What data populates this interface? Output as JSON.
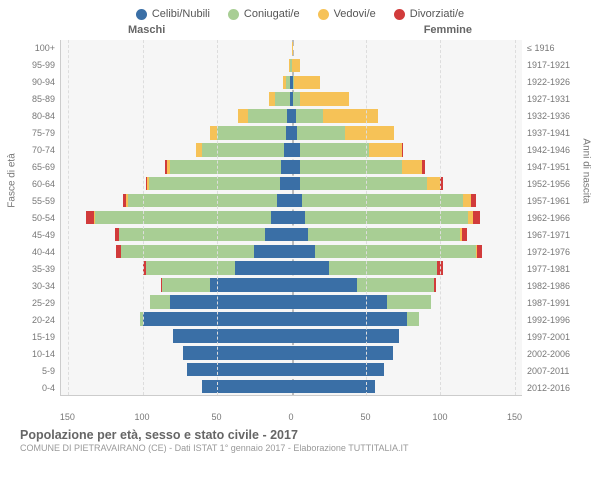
{
  "legend": [
    {
      "label": "Celibi/Nubili",
      "color": "#3a6fa6"
    },
    {
      "label": "Coniugati/e",
      "color": "#a8ce94"
    },
    {
      "label": "Vedovi/e",
      "color": "#f6c257"
    },
    {
      "label": "Divorziati/e",
      "color": "#d13b3b"
    }
  ],
  "side_labels": {
    "left": "Maschi",
    "right": "Femmine"
  },
  "axis_titles": {
    "left": "Fasce di età",
    "right": "Anni di nascita"
  },
  "x_ticks": [
    150,
    100,
    50,
    0,
    50,
    100,
    150
  ],
  "x_max": 155,
  "age_groups": [
    "100+",
    "95-99",
    "90-94",
    "85-89",
    "80-84",
    "75-79",
    "70-74",
    "65-69",
    "60-64",
    "55-59",
    "50-54",
    "45-49",
    "40-44",
    "35-39",
    "30-34",
    "25-29",
    "20-24",
    "15-19",
    "10-14",
    "5-9",
    "0-4"
  ],
  "birth_years": [
    "≤ 1916",
    "1917-1921",
    "1922-1926",
    "1927-1931",
    "1932-1936",
    "1937-1941",
    "1942-1946",
    "1947-1951",
    "1952-1956",
    "1957-1961",
    "1962-1966",
    "1967-1971",
    "1972-1976",
    "1977-1981",
    "1982-1986",
    "1987-1991",
    "1992-1996",
    "1997-2001",
    "2002-2006",
    "2007-2011",
    "2012-2016"
  ],
  "rows": [
    {
      "m": {
        "c": 0,
        "m": 0,
        "w": 0,
        "d": 0
      },
      "f": {
        "c": 0,
        "m": 0,
        "w": 1,
        "d": 0
      }
    },
    {
      "m": {
        "c": 0,
        "m": 1,
        "w": 1,
        "d": 0
      },
      "f": {
        "c": 0,
        "m": 0,
        "w": 6,
        "d": 0
      }
    },
    {
      "m": {
        "c": 1,
        "m": 3,
        "w": 2,
        "d": 0
      },
      "f": {
        "c": 1,
        "m": 1,
        "w": 17,
        "d": 0
      }
    },
    {
      "m": {
        "c": 1,
        "m": 10,
        "w": 4,
        "d": 0
      },
      "f": {
        "c": 1,
        "m": 5,
        "w": 33,
        "d": 0
      }
    },
    {
      "m": {
        "c": 3,
        "m": 26,
        "w": 7,
        "d": 0
      },
      "f": {
        "c": 3,
        "m": 18,
        "w": 37,
        "d": 0
      }
    },
    {
      "m": {
        "c": 4,
        "m": 46,
        "w": 5,
        "d": 0
      },
      "f": {
        "c": 4,
        "m": 32,
        "w": 33,
        "d": 0
      }
    },
    {
      "m": {
        "c": 5,
        "m": 55,
        "w": 4,
        "d": 0
      },
      "f": {
        "c": 6,
        "m": 46,
        "w": 22,
        "d": 1
      }
    },
    {
      "m": {
        "c": 7,
        "m": 75,
        "w": 2,
        "d": 1
      },
      "f": {
        "c": 6,
        "m": 68,
        "w": 14,
        "d": 2
      }
    },
    {
      "m": {
        "c": 8,
        "m": 88,
        "w": 1,
        "d": 1
      },
      "f": {
        "c": 6,
        "m": 85,
        "w": 9,
        "d": 2
      }
    },
    {
      "m": {
        "c": 10,
        "m": 100,
        "w": 1,
        "d": 2
      },
      "f": {
        "c": 7,
        "m": 108,
        "w": 6,
        "d": 3
      }
    },
    {
      "m": {
        "c": 14,
        "m": 118,
        "w": 1,
        "d": 5
      },
      "f": {
        "c": 9,
        "m": 110,
        "w": 3,
        "d": 5
      }
    },
    {
      "m": {
        "c": 18,
        "m": 98,
        "w": 0,
        "d": 3
      },
      "f": {
        "c": 11,
        "m": 102,
        "w": 2,
        "d": 3
      }
    },
    {
      "m": {
        "c": 25,
        "m": 90,
        "w": 0,
        "d": 3
      },
      "f": {
        "c": 16,
        "m": 108,
        "w": 1,
        "d": 3
      }
    },
    {
      "m": {
        "c": 38,
        "m": 60,
        "w": 0,
        "d": 2
      },
      "f": {
        "c": 25,
        "m": 73,
        "w": 0,
        "d": 4
      }
    },
    {
      "m": {
        "c": 55,
        "m": 32,
        "w": 0,
        "d": 1
      },
      "f": {
        "c": 44,
        "m": 52,
        "w": 0,
        "d": 1
      }
    },
    {
      "m": {
        "c": 82,
        "m": 13,
        "w": 0,
        "d": 0
      },
      "f": {
        "c": 64,
        "m": 30,
        "w": 0,
        "d": 0
      }
    },
    {
      "m": {
        "c": 100,
        "m": 2,
        "w": 0,
        "d": 0
      },
      "f": {
        "c": 78,
        "m": 8,
        "w": 0,
        "d": 0
      }
    },
    {
      "m": {
        "c": 80,
        "m": 0,
        "w": 0,
        "d": 0
      },
      "f": {
        "c": 72,
        "m": 0,
        "w": 0,
        "d": 0
      }
    },
    {
      "m": {
        "c": 73,
        "m": 0,
        "w": 0,
        "d": 0
      },
      "f": {
        "c": 68,
        "m": 0,
        "w": 0,
        "d": 0
      }
    },
    {
      "m": {
        "c": 70,
        "m": 0,
        "w": 0,
        "d": 0
      },
      "f": {
        "c": 62,
        "m": 0,
        "w": 0,
        "d": 0
      }
    },
    {
      "m": {
        "c": 60,
        "m": 0,
        "w": 0,
        "d": 0
      },
      "f": {
        "c": 56,
        "m": 0,
        "w": 0,
        "d": 0
      }
    }
  ],
  "footer": {
    "title": "Popolazione per età, sesso e stato civile - 2017",
    "sub": "COMUNE DI PIETRAVAIRANO (CE) - Dati ISTAT 1° gennaio 2017 - Elaborazione TUTTITALIA.IT"
  },
  "colors": {
    "celibi": "#3a6fa6",
    "coniugati": "#a8ce94",
    "vedovi": "#f6c257",
    "divorziati": "#d13b3b",
    "plot_bg": "#f6f6f6",
    "grid": "#dddddd"
  }
}
